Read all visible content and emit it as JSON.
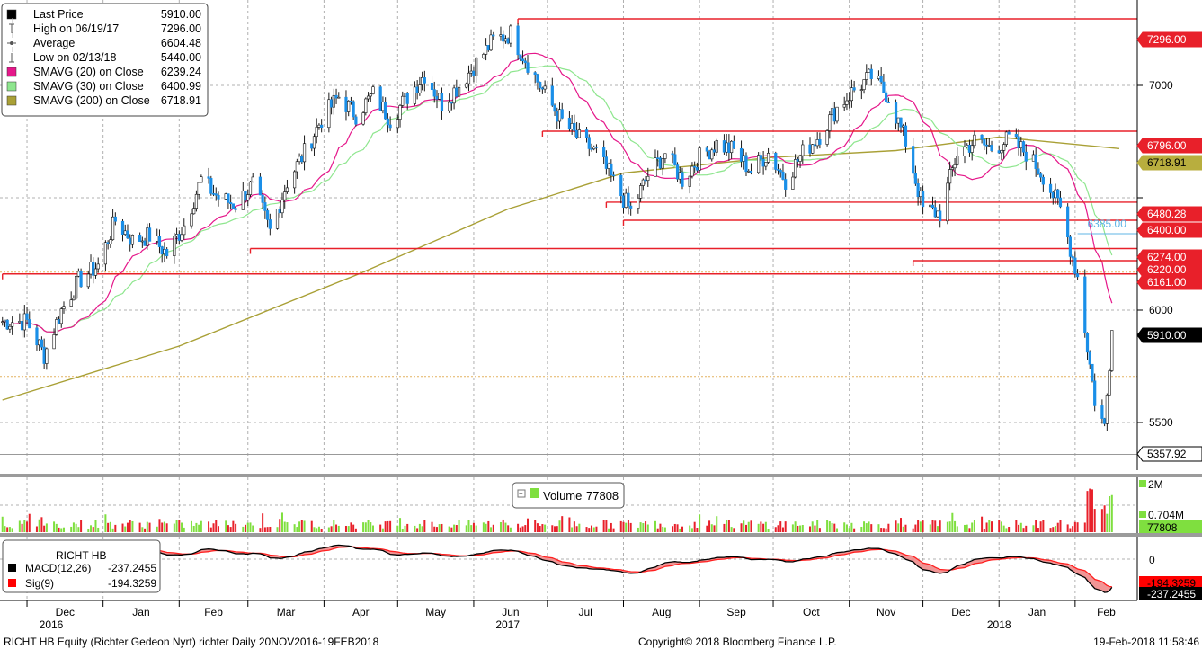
{
  "legend": {
    "items": [
      {
        "label": "Last Price",
        "value": "5910.00",
        "color": "#000000",
        "marker": "square"
      },
      {
        "label": "High on 06/19/17",
        "value": "7296.00",
        "color": "#555555",
        "marker": "high-icon"
      },
      {
        "label": "Average",
        "value": "6604.48",
        "color": "#555555",
        "marker": "average-icon"
      },
      {
        "label": "Low on 02/13/18",
        "value": "5440.00",
        "color": "#555555",
        "marker": "low-icon"
      },
      {
        "label": "SMAVG (20) on Close",
        "value": "6239.24",
        "color": "#e5178a",
        "marker": "square"
      },
      {
        "label": "SMAVG (30) on Close",
        "value": "6400.99",
        "color": "#8ee68e",
        "marker": "square"
      },
      {
        "label": "SMAVG (200) on Close",
        "value": "6718.91",
        "color": "#a9a036",
        "marker": "square"
      }
    ]
  },
  "volume_legend": {
    "label": "Volume",
    "value": "77808",
    "color": "#7fdf3f"
  },
  "macd_legend": {
    "title": "RICHT HB",
    "items": [
      {
        "label": "MACD(12,26)",
        "value": "-237.2455",
        "color": "#000000"
      },
      {
        "label": "Sig(9)",
        "value": "-194.3259",
        "color": "#ff0000"
      }
    ]
  },
  "price_labels": [
    {
      "text": "7296.00",
      "value": 7296,
      "style": "red"
    },
    {
      "text": "6796.00",
      "value": 6796,
      "style": "red"
    },
    {
      "text": "6718.91",
      "value": 6718.91,
      "style": "olive"
    },
    {
      "text": "6480.28",
      "value": 6480.28,
      "style": "red"
    },
    {
      "text": "6400.00",
      "value": 6400,
      "style": "red"
    },
    {
      "text": "6274.00",
      "value": 6274,
      "style": "red"
    },
    {
      "text": "6220.00",
      "value": 6220,
      "style": "red"
    },
    {
      "text": "6161.00",
      "value": 6161,
      "style": "red"
    },
    {
      "text": "5910.00",
      "value": 5910,
      "style": "black"
    },
    {
      "text": "5357.92",
      "value": 5357.92,
      "style": "plain"
    }
  ],
  "volume_labels": {
    "top": "2M",
    "mid": "0.704M",
    "last": "77808"
  },
  "macd_labels": {
    "zero": "0",
    "sig": "-194.3259",
    "macd": "-237.2455"
  },
  "annotation": {
    "text": "6385.00",
    "value": 6385
  },
  "footer": {
    "left": "RICHT HB Equity (Richter Gedeon Nyrt) richter  Daily 20NOV2016-19FEB2018",
    "center": "Copyright© 2018 Bloomberg Finance L.P.",
    "right": "19-Feb-2018 11:58:46"
  },
  "chart_data": {
    "type": "candlestick",
    "title": "",
    "ticker": "RICHT HB Equity",
    "ylim": [
      5300,
      7380
    ],
    "y_ticks": [
      5500,
      6000,
      6500,
      7000
    ],
    "y_tick_labels": [
      "5500",
      "6000",
      "",
      "7000"
    ],
    "x_months": [
      "Dec",
      "Jan",
      "Feb",
      "Mar",
      "Apr",
      "May",
      "Jun",
      "Jul",
      "Aug",
      "Sep",
      "Oct",
      "Nov",
      "Dec",
      "Jan",
      "Feb"
    ],
    "x_years": [
      "2016",
      "2017",
      "2018"
    ],
    "close_path": [
      [
        "2016-11-21",
        5950
      ],
      [
        "2016-12-01",
        5950
      ],
      [
        "2016-12-08",
        5800
      ],
      [
        "2016-12-15",
        6000
      ],
      [
        "2016-12-22",
        6130
      ],
      [
        "2016-12-30",
        6200
      ],
      [
        "2017-01-06",
        6400
      ],
      [
        "2017-01-13",
        6310
      ],
      [
        "2017-01-20",
        6330
      ],
      [
        "2017-01-27",
        6250
      ],
      [
        "2017-02-03",
        6380
      ],
      [
        "2017-02-10",
        6580
      ],
      [
        "2017-02-17",
        6500
      ],
      [
        "2017-02-24",
        6470
      ],
      [
        "2017-03-03",
        6560
      ],
      [
        "2017-03-10",
        6350
      ],
      [
        "2017-03-17",
        6570
      ],
      [
        "2017-03-24",
        6700
      ],
      [
        "2017-03-31",
        6850
      ],
      [
        "2017-04-07",
        6950
      ],
      [
        "2017-04-14",
        6870
      ],
      [
        "2017-04-21",
        6960
      ],
      [
        "2017-04-28",
        6850
      ],
      [
        "2017-05-05",
        6950
      ],
      [
        "2017-05-12",
        7050
      ],
      [
        "2017-05-19",
        6920
      ],
      [
        "2017-05-26",
        7000
      ],
      [
        "2017-06-02",
        7100
      ],
      [
        "2017-06-09",
        7200
      ],
      [
        "2017-06-16",
        7230
      ],
      [
        "2017-06-23",
        7100
      ],
      [
        "2017-06-30",
        6960
      ],
      [
        "2017-07-07",
        6840
      ],
      [
        "2017-07-14",
        6760
      ],
      [
        "2017-07-21",
        6700
      ],
      [
        "2017-07-28",
        6570
      ],
      [
        "2017-08-04",
        6440
      ],
      [
        "2017-08-11",
        6600
      ],
      [
        "2017-08-18",
        6700
      ],
      [
        "2017-08-25",
        6580
      ],
      [
        "2017-09-01",
        6680
      ],
      [
        "2017-09-08",
        6740
      ],
      [
        "2017-09-15",
        6710
      ],
      [
        "2017-09-22",
        6620
      ],
      [
        "2017-09-29",
        6700
      ],
      [
        "2017-10-06",
        6580
      ],
      [
        "2017-10-13",
        6700
      ],
      [
        "2017-10-20",
        6780
      ],
      [
        "2017-10-27",
        6900
      ],
      [
        "2017-11-03",
        6980
      ],
      [
        "2017-11-10",
        7040
      ],
      [
        "2017-11-17",
        6950
      ],
      [
        "2017-11-24",
        6750
      ],
      [
        "2017-12-01",
        6450
      ],
      [
        "2017-12-08",
        6430
      ],
      [
        "2017-12-15",
        6700
      ],
      [
        "2017-12-22",
        6750
      ],
      [
        "2017-12-29",
        6720
      ],
      [
        "2018-01-05",
        6760
      ],
      [
        "2018-01-12",
        6700
      ],
      [
        "2018-01-19",
        6600
      ],
      [
        "2018-01-26",
        6450
      ],
      [
        "2018-02-02",
        6150
      ],
      [
        "2018-02-09",
        5600
      ],
      [
        "2018-02-13",
        5480
      ],
      [
        "2018-02-16",
        5910
      ]
    ],
    "high": {
      "date": "2017-06-19",
      "value": 7296
    },
    "low": {
      "date": "2018-02-13",
      "value": 5440
    },
    "last_price": 5910,
    "average": 6604.48,
    "smavg_20": 6239.24,
    "smavg_30": 6400.99,
    "smavg_200": 6718.91,
    "smavg_200_path": [
      [
        "2016-11-21",
        5600
      ],
      [
        "2017-02-01",
        5840
      ],
      [
        "2017-04-15",
        6160
      ],
      [
        "2017-06-15",
        6450
      ],
      [
        "2017-08-01",
        6610
      ],
      [
        "2017-10-01",
        6680
      ],
      [
        "2017-11-20",
        6710
      ],
      [
        "2018-01-01",
        6770
      ],
      [
        "2018-02-19",
        6719
      ]
    ],
    "horizontal_levels": [
      {
        "value": 7296,
        "from": "2017-06-19"
      },
      {
        "value": 6796,
        "from": "2017-06-29"
      },
      {
        "value": 6480.28,
        "from": "2017-07-25"
      },
      {
        "value": 6400,
        "from": "2017-08-01"
      },
      {
        "value": 6274,
        "from": "2017-03-02"
      },
      {
        "value": 6220,
        "from": "2017-11-27"
      },
      {
        "value": 6161,
        "from": "2016-11-21"
      }
    ],
    "volume": {
      "ylim_label_top": "2M",
      "reference": "0.704M",
      "last": 77808
    },
    "macd": {
      "macd": -237.2455,
      "signal": -194.3259
    }
  }
}
